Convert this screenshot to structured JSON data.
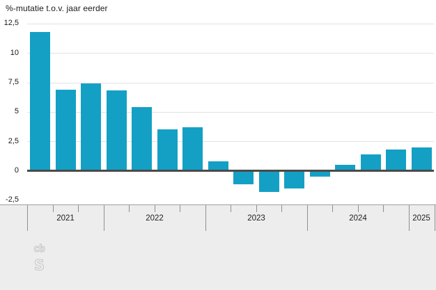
{
  "chart_data": {
    "type": "bar",
    "title": "%-mutatie t.o.v. jaar eerder",
    "unit": "%",
    "x": [
      "2021 Q2",
      "2021 Q3",
      "2021 Q4",
      "2022 Q1",
      "2022 Q2",
      "2022 Q3",
      "2022 Q4",
      "2023 Q1",
      "2023 Q2",
      "2023 Q3",
      "2023 Q4",
      "2024 Q1",
      "2024 Q2",
      "2024 Q3",
      "2024 Q4",
      "2025 Q1"
    ],
    "values": [
      11.8,
      6.9,
      7.4,
      6.8,
      5.4,
      3.5,
      3.7,
      0.8,
      -1.1,
      -1.8,
      -1.5,
      -0.5,
      0.5,
      1.4,
      1.8,
      2.0
    ],
    "ylim": [
      -2.5,
      12.5
    ],
    "ytick_values": [
      12.5,
      10,
      7.5,
      5,
      2.5,
      0,
      -2.5
    ],
    "ytick_labels": [
      "12,5",
      "10",
      "7,5",
      "5",
      "2,5",
      "0",
      "-2,5"
    ],
    "years": [
      {
        "label": "2021",
        "quarters": 3
      },
      {
        "label": "2022",
        "quarters": 4
      },
      {
        "label": "2023",
        "quarters": 4
      },
      {
        "label": "2024",
        "quarters": 4
      },
      {
        "label": "2025",
        "quarters": 1
      }
    ],
    "bar_color": "#14a0c5",
    "grid": true,
    "legend": false
  },
  "colors": {
    "bar": "#14a0c5",
    "gridline": "#e2e2e2",
    "zero_line": "#4a4a4a",
    "band_background": "#ededed",
    "band_border": "#9f9f9f",
    "tick": "#8f8f8f",
    "text": "#1a1a1a",
    "logo_outline": "#c6c6c6"
  },
  "footer": {
    "logo_name": "cbs-logo",
    "logo_letters": [
      "cb",
      "s"
    ]
  }
}
